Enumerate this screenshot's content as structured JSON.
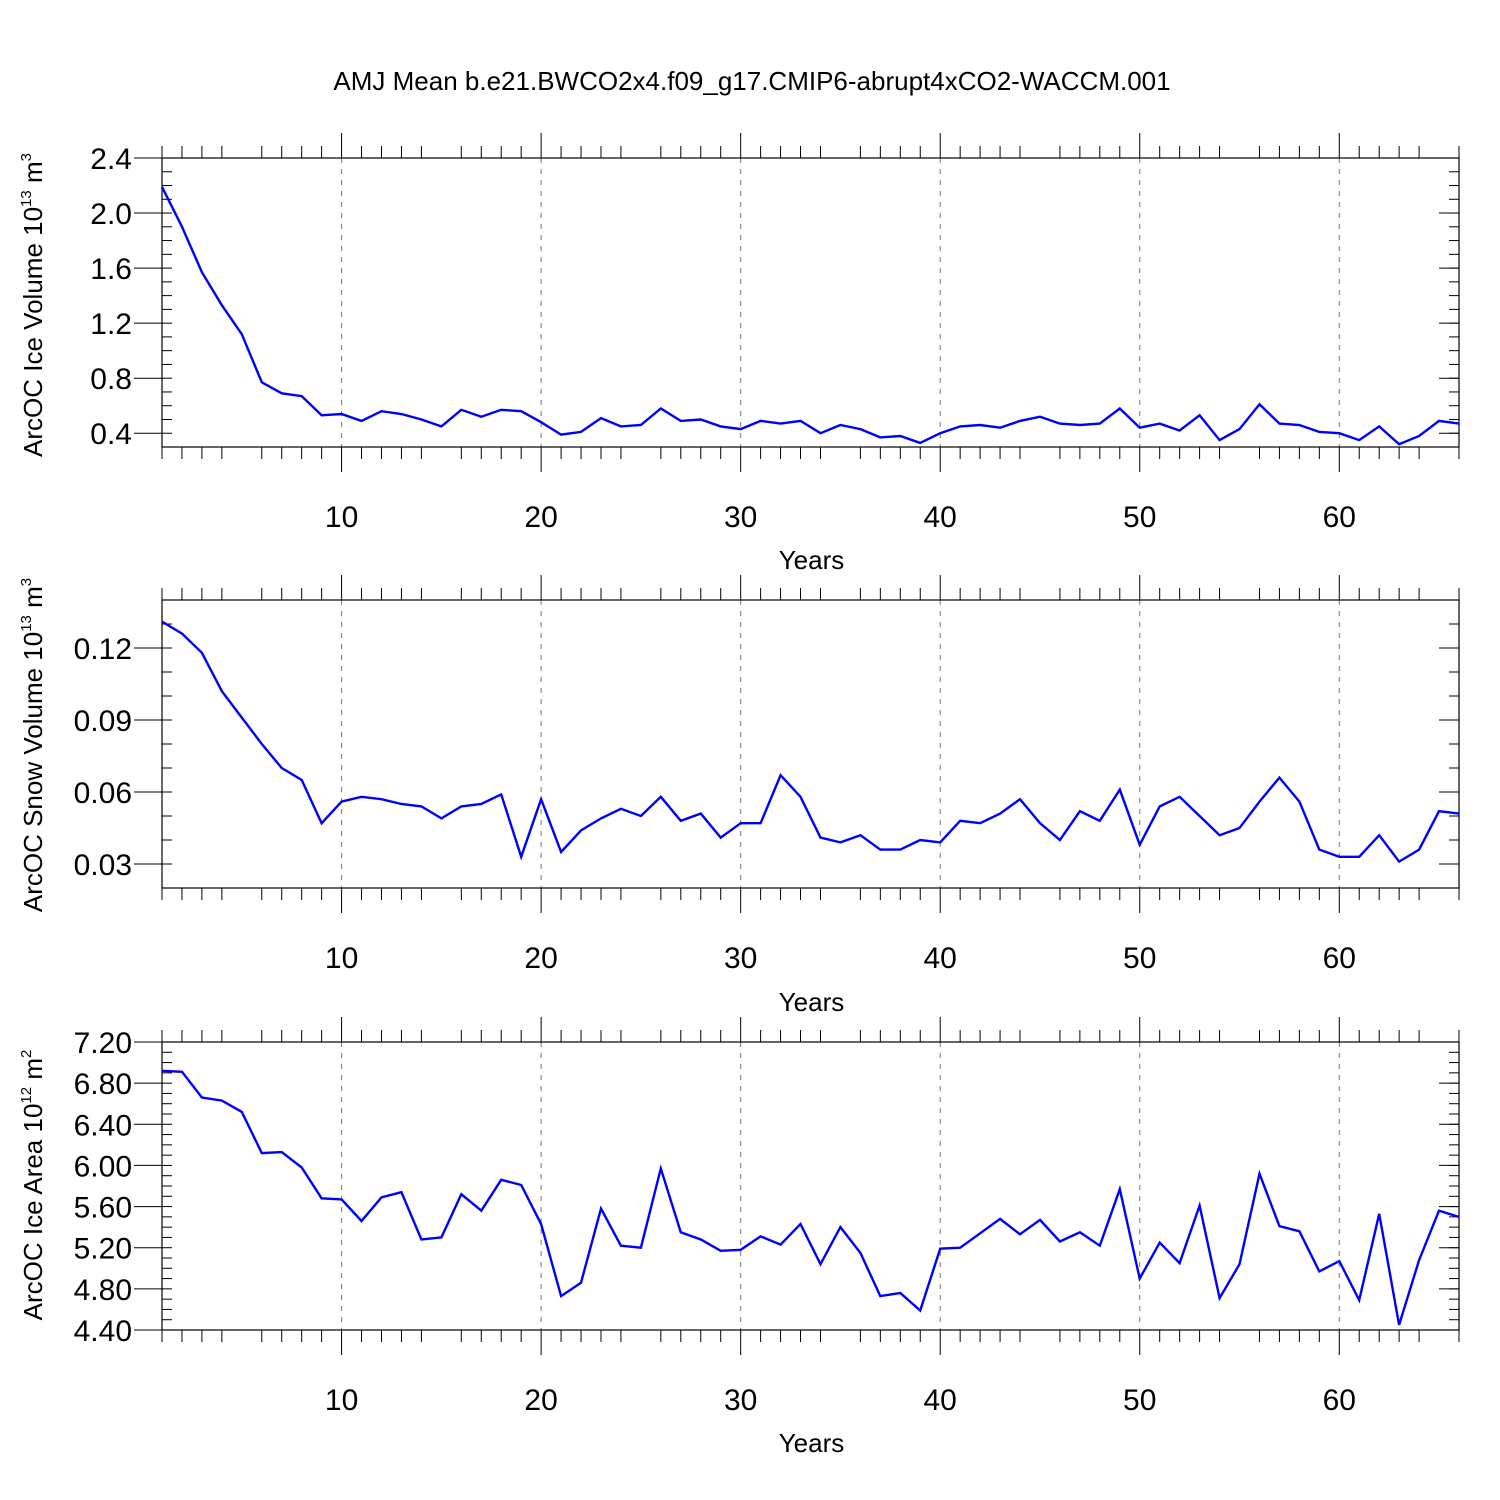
{
  "title": "AMJ Mean b.e21.BWCO2x4.f09_g17.CMIP6-abrupt4xCO2-WACCM.001",
  "chart_data": [
    {
      "type": "line",
      "ylabel": "ArcOC Ice Volume 10",
      "ylabel_exp": "13",
      "ylabel_unit": " m",
      "ylabel_unit_exp": "3",
      "xlabel": "Years",
      "xlim": [
        1,
        66
      ],
      "ylim": [
        0.3,
        2.4
      ],
      "xticks": [
        "10",
        "20",
        "30",
        "40",
        "50",
        "60"
      ],
      "yticks": [
        "0.4",
        "0.8",
        "1.2",
        "1.6",
        "2.0",
        "2.4"
      ],
      "grid": "vertical dashed at major x ticks",
      "color": "#0000ff",
      "x": [
        1,
        2,
        3,
        4,
        5,
        6,
        7,
        8,
        9,
        10,
        11,
        12,
        13,
        14,
        15,
        16,
        17,
        18,
        19,
        20,
        21,
        22,
        23,
        24,
        25,
        26,
        27,
        28,
        29,
        30,
        31,
        32,
        33,
        34,
        35,
        36,
        37,
        38,
        39,
        40,
        41,
        42,
        43,
        44,
        45,
        46,
        47,
        48,
        49,
        50,
        51,
        52,
        53,
        54,
        55,
        56,
        57,
        58,
        59,
        60,
        61,
        62,
        63,
        64,
        65,
        66
      ],
      "values": [
        2.19,
        1.9,
        1.57,
        1.33,
        1.12,
        0.77,
        0.69,
        0.67,
        0.53,
        0.54,
        0.49,
        0.56,
        0.54,
        0.5,
        0.45,
        0.57,
        0.52,
        0.57,
        0.56,
        0.48,
        0.39,
        0.41,
        0.51,
        0.45,
        0.46,
        0.58,
        0.49,
        0.5,
        0.45,
        0.43,
        0.49,
        0.47,
        0.49,
        0.4,
        0.46,
        0.43,
        0.37,
        0.38,
        0.33,
        0.4,
        0.45,
        0.46,
        0.44,
        0.49,
        0.52,
        0.47,
        0.46,
        0.47,
        0.58,
        0.44,
        0.47,
        0.42,
        0.53,
        0.35,
        0.43,
        0.61,
        0.47,
        0.46,
        0.41,
        0.4,
        0.35,
        0.45,
        0.32,
        0.38,
        0.49,
        0.47
      ]
    },
    {
      "type": "line",
      "ylabel": "ArcOC Snow Volume 10",
      "ylabel_exp": "13",
      "ylabel_unit": " m",
      "ylabel_unit_exp": "3",
      "xlabel": "Years",
      "xlim": [
        1,
        66
      ],
      "ylim": [
        0.02,
        0.14
      ],
      "xticks": [
        "10",
        "20",
        "30",
        "40",
        "50",
        "60"
      ],
      "yticks": [
        "0.03",
        "0.06",
        "0.09",
        "0.12"
      ],
      "grid": "vertical dashed at major x ticks",
      "color": "#0000ff",
      "x": [
        1,
        2,
        3,
        4,
        5,
        6,
        7,
        8,
        9,
        10,
        11,
        12,
        13,
        14,
        15,
        16,
        17,
        18,
        19,
        20,
        21,
        22,
        23,
        24,
        25,
        26,
        27,
        28,
        29,
        30,
        31,
        32,
        33,
        34,
        35,
        36,
        37,
        38,
        39,
        40,
        41,
        42,
        43,
        44,
        45,
        46,
        47,
        48,
        49,
        50,
        51,
        52,
        53,
        54,
        55,
        56,
        57,
        58,
        59,
        60,
        61,
        62,
        63,
        64,
        65,
        66
      ],
      "values": [
        0.131,
        0.126,
        0.118,
        0.102,
        0.091,
        0.08,
        0.07,
        0.065,
        0.047,
        0.056,
        0.058,
        0.057,
        0.055,
        0.054,
        0.049,
        0.054,
        0.055,
        0.059,
        0.033,
        0.057,
        0.035,
        0.044,
        0.049,
        0.053,
        0.05,
        0.058,
        0.048,
        0.051,
        0.041,
        0.047,
        0.047,
        0.067,
        0.058,
        0.041,
        0.039,
        0.042,
        0.036,
        0.036,
        0.04,
        0.039,
        0.048,
        0.047,
        0.051,
        0.057,
        0.047,
        0.04,
        0.052,
        0.048,
        0.061,
        0.038,
        0.054,
        0.058,
        0.05,
        0.042,
        0.045,
        0.056,
        0.066,
        0.056,
        0.036,
        0.033,
        0.033,
        0.042,
        0.031,
        0.036,
        0.052,
        0.051
      ]
    },
    {
      "type": "line",
      "ylabel": "ArcOC Ice Area 10",
      "ylabel_exp": "12",
      "ylabel_unit": " m",
      "ylabel_unit_exp": "2",
      "xlabel": "Years",
      "xlim": [
        1,
        66
      ],
      "ylim": [
        4.4,
        7.2
      ],
      "xticks": [
        "10",
        "20",
        "30",
        "40",
        "50",
        "60"
      ],
      "yticks": [
        "4.40",
        "4.80",
        "5.20",
        "5.60",
        "6.00",
        "6.40",
        "6.80",
        "7.20"
      ],
      "grid": "vertical dashed at major x ticks",
      "color": "#0000ff",
      "x": [
        1,
        2,
        3,
        4,
        5,
        6,
        7,
        8,
        9,
        10,
        11,
        12,
        13,
        14,
        15,
        16,
        17,
        18,
        19,
        20,
        21,
        22,
        23,
        24,
        25,
        26,
        27,
        28,
        29,
        30,
        31,
        32,
        33,
        34,
        35,
        36,
        37,
        38,
        39,
        40,
        41,
        42,
        43,
        44,
        45,
        46,
        47,
        48,
        49,
        50,
        51,
        52,
        53,
        54,
        55,
        56,
        57,
        58,
        59,
        60,
        61,
        62,
        63,
        64,
        65,
        66
      ],
      "values": [
        6.92,
        6.91,
        6.66,
        6.63,
        6.52,
        6.12,
        6.13,
        5.98,
        5.68,
        5.67,
        5.46,
        5.69,
        5.74,
        5.28,
        5.3,
        5.72,
        5.56,
        5.86,
        5.81,
        5.43,
        4.73,
        4.86,
        5.58,
        5.22,
        5.2,
        5.97,
        5.35,
        5.28,
        5.17,
        5.18,
        5.31,
        5.23,
        5.43,
        5.04,
        5.4,
        5.15,
        4.73,
        4.76,
        4.59,
        5.19,
        5.2,
        5.34,
        5.48,
        5.33,
        5.47,
        5.26,
        5.35,
        5.22,
        5.77,
        4.9,
        5.25,
        5.05,
        5.61,
        4.71,
        5.04,
        5.92,
        5.41,
        5.36,
        4.97,
        5.07,
        4.69,
        5.53,
        4.45,
        5.08,
        5.56,
        5.5
      ]
    }
  ]
}
